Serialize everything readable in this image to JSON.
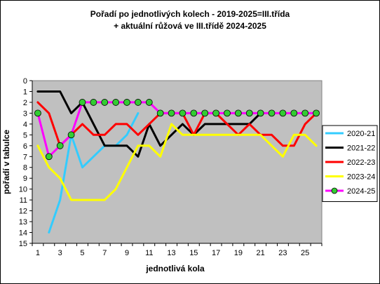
{
  "chart_data": {
    "type": "line",
    "title": [
      "Pořadí po jednotlivých kolech - 2019-2025=III.třída",
      "+ aktuální růžová ve III.třídě 2024-2025"
    ],
    "xlabel": "jednotlivá kola",
    "ylabel": "pořadí v tabulce",
    "xlim": [
      1,
      26
    ],
    "x_tick_labels": [
      "1",
      "3",
      "5",
      "7",
      "9",
      "11",
      "13",
      "15",
      "17",
      "19",
      "21",
      "23",
      "25"
    ],
    "ylim": [
      15,
      0
    ],
    "y_reversed": true,
    "y_tick_labels": [
      "0",
      "1",
      "2",
      "3",
      "4",
      "5",
      "6",
      "7",
      "8",
      "9",
      "10",
      "11",
      "12",
      "13",
      "14",
      "15"
    ],
    "plot_background": "#c0c0c0",
    "grid": false,
    "legend_position": "right",
    "series": [
      {
        "name": "2020-21",
        "color": "#33ccff",
        "points": [
          [
            2,
            14
          ],
          [
            3,
            11
          ],
          [
            4,
            5
          ],
          [
            5,
            8
          ],
          [
            6,
            7
          ],
          [
            7,
            6
          ],
          [
            8,
            6
          ],
          [
            9,
            5
          ],
          [
            10,
            3
          ]
        ]
      },
      {
        "name": "2021-22",
        "color": "#000000",
        "points": [
          [
            1,
            1
          ],
          [
            2,
            1
          ],
          [
            3,
            1
          ],
          [
            4,
            3
          ],
          [
            5,
            2
          ],
          [
            6,
            4
          ],
          [
            7,
            6
          ],
          [
            8,
            6
          ],
          [
            9,
            6
          ],
          [
            10,
            7
          ],
          [
            11,
            4
          ],
          [
            12,
            6
          ],
          [
            13,
            5
          ],
          [
            14,
            4
          ],
          [
            15,
            5
          ],
          [
            16,
            4
          ],
          [
            17,
            4
          ],
          [
            18,
            4
          ],
          [
            19,
            4
          ],
          [
            20,
            4
          ],
          [
            21,
            3
          ]
        ]
      },
      {
        "name": "2022-23",
        "color": "#ff0000",
        "points": [
          [
            1,
            2
          ],
          [
            2,
            3
          ],
          [
            3,
            6
          ],
          [
            4,
            5
          ],
          [
            5,
            4
          ],
          [
            6,
            5
          ],
          [
            7,
            5
          ],
          [
            8,
            4
          ],
          [
            9,
            4
          ],
          [
            10,
            5
          ],
          [
            11,
            4
          ],
          [
            12,
            3
          ],
          [
            13,
            3
          ],
          [
            14,
            3
          ],
          [
            15,
            5
          ],
          [
            16,
            3
          ],
          [
            17,
            3
          ],
          [
            18,
            4
          ],
          [
            19,
            5
          ],
          [
            20,
            4
          ],
          [
            21,
            5
          ],
          [
            22,
            5
          ],
          [
            23,
            6
          ],
          [
            24,
            6
          ],
          [
            25,
            4
          ],
          [
            26,
            3
          ]
        ]
      },
      {
        "name": "2023-24",
        "color": "#ffff00",
        "points": [
          [
            1,
            6
          ],
          [
            2,
            8
          ],
          [
            3,
            9
          ],
          [
            4,
            11
          ],
          [
            5,
            11
          ],
          [
            6,
            11
          ],
          [
            7,
            11
          ],
          [
            8,
            10
          ],
          [
            9,
            8
          ],
          [
            10,
            6
          ],
          [
            11,
            6
          ],
          [
            12,
            7
          ],
          [
            13,
            4
          ],
          [
            14,
            5
          ],
          [
            15,
            5
          ],
          [
            16,
            5
          ],
          [
            17,
            5
          ],
          [
            18,
            5
          ],
          [
            19,
            5
          ],
          [
            20,
            5
          ],
          [
            21,
            5
          ],
          [
            22,
            6
          ],
          [
            23,
            7
          ],
          [
            24,
            5
          ],
          [
            25,
            5
          ],
          [
            26,
            6
          ]
        ]
      },
      {
        "name": "2024-25",
        "color": "#ff00ff",
        "marker": "circle",
        "marker_fill": "#33cc33",
        "points": [
          [
            1,
            3
          ],
          [
            2,
            7
          ],
          [
            3,
            6
          ],
          [
            4,
            5
          ],
          [
            5,
            2
          ],
          [
            6,
            2
          ],
          [
            7,
            2
          ],
          [
            8,
            2
          ],
          [
            9,
            2
          ],
          [
            10,
            2
          ],
          [
            11,
            2
          ],
          [
            12,
            3
          ],
          [
            13,
            3
          ],
          [
            14,
            3
          ],
          [
            15,
            3
          ],
          [
            16,
            3
          ],
          [
            17,
            3
          ],
          [
            18,
            3
          ],
          [
            19,
            3
          ],
          [
            20,
            3
          ],
          [
            21,
            3
          ],
          [
            22,
            3
          ],
          [
            23,
            3
          ],
          [
            24,
            3
          ],
          [
            25,
            3
          ],
          [
            26,
            3
          ]
        ]
      }
    ]
  }
}
